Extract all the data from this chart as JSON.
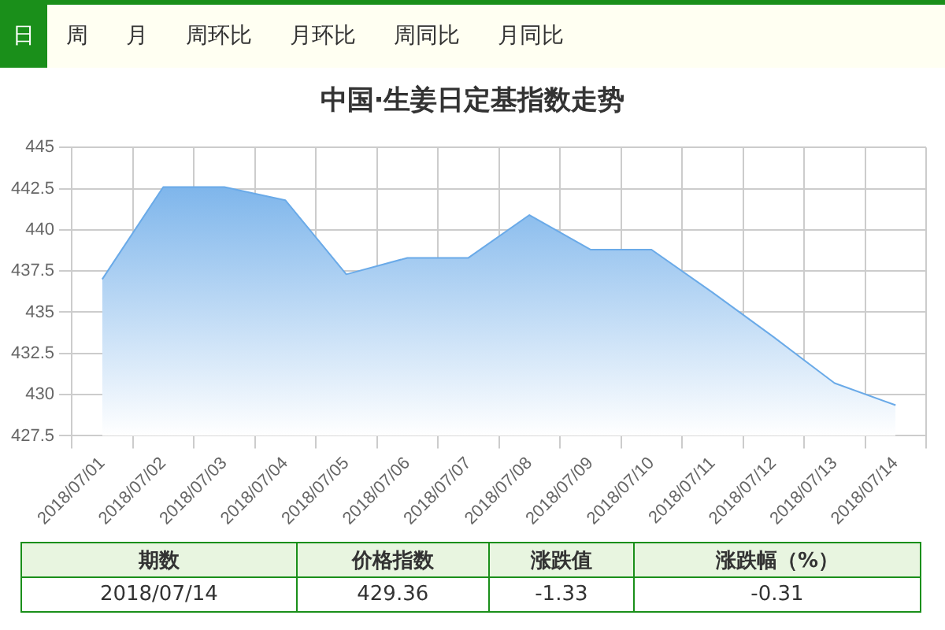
{
  "chart_data": {
    "type": "area",
    "title": "中国·生姜日定基指数走势",
    "categories": [
      "2018/07/01",
      "2018/07/02",
      "2018/07/03",
      "2018/07/04",
      "2018/07/05",
      "2018/07/06",
      "2018/07/07",
      "2018/07/08",
      "2018/07/09",
      "2018/07/10",
      "2018/07/11",
      "2018/07/12",
      "2018/07/13",
      "2018/07/14"
    ],
    "series": [
      {
        "color": "#6aaae8",
        "values": [
          437.0,
          442.6,
          442.6,
          441.8,
          437.3,
          438.3,
          438.3,
          440.9,
          438.8,
          438.8,
          436.2,
          433.5,
          430.7,
          429.36
        ]
      }
    ],
    "ylim": [
      427.5,
      445
    ],
    "yticks": [
      427.5,
      430,
      432.5,
      435,
      437.5,
      440,
      442.5,
      445
    ],
    "grid": true,
    "legend": false,
    "marker": "none",
    "annotations": [
      "日",
      "周",
      "月",
      "周环比",
      "月环比",
      "周同比",
      "月同比",
      "期数",
      "价格指数",
      "涨跌值",
      "涨跌幅（%）",
      "2018/07/14",
      "429.36",
      "-1.33",
      "-0.31"
    ]
  }
}
